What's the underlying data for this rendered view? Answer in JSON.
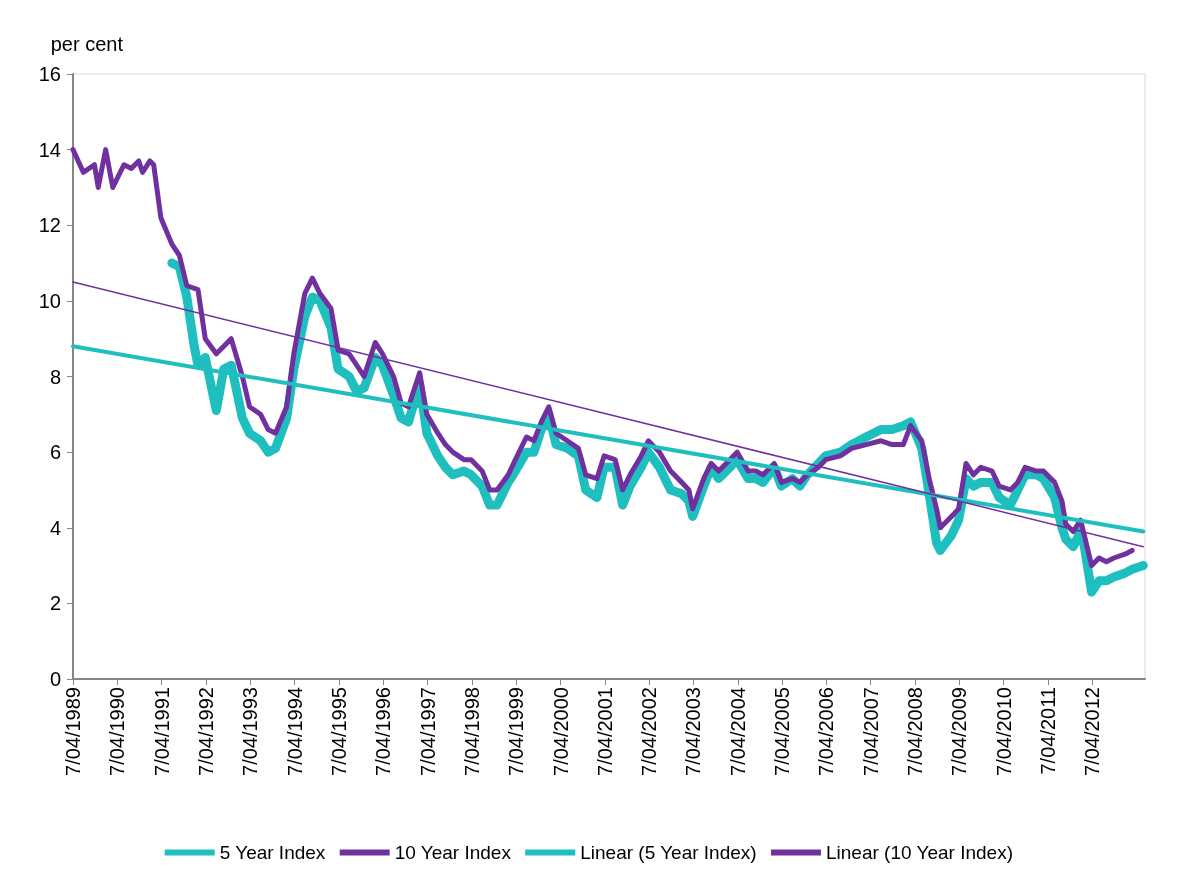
{
  "chart_data": {
    "type": "line",
    "ylabel": "per cent",
    "ylim": [
      0,
      16
    ],
    "yticks": [
      0,
      2,
      4,
      6,
      8,
      10,
      12,
      14,
      16
    ],
    "xlim": [
      "1989-04-07",
      "2013-06-15"
    ],
    "xticks": [
      {
        "value": "1989-04-07",
        "label": "7/04/1989"
      },
      {
        "value": "1990-04-07",
        "label": "7/04/1990"
      },
      {
        "value": "1991-04-07",
        "label": "7/04/1991"
      },
      {
        "value": "1992-04-07",
        "label": "7/04/1992"
      },
      {
        "value": "1993-04-07",
        "label": "7/04/1993"
      },
      {
        "value": "1994-04-07",
        "label": "7/04/1994"
      },
      {
        "value": "1995-04-07",
        "label": "7/04/1995"
      },
      {
        "value": "1996-04-07",
        "label": "7/04/1996"
      },
      {
        "value": "1997-04-07",
        "label": "7/04/1997"
      },
      {
        "value": "1998-04-07",
        "label": "7/04/1998"
      },
      {
        "value": "1999-04-07",
        "label": "7/04/1999"
      },
      {
        "value": "2000-04-07",
        "label": "7/04/2000"
      },
      {
        "value": "2001-04-07",
        "label": "7/04/2001"
      },
      {
        "value": "2002-04-07",
        "label": "7/04/2002"
      },
      {
        "value": "2003-04-07",
        "label": "7/04/2003"
      },
      {
        "value": "2004-04-07",
        "label": "7/04/2004"
      },
      {
        "value": "2005-04-07",
        "label": "7/04/2005"
      },
      {
        "value": "2006-04-07",
        "label": "7/04/2006"
      },
      {
        "value": "2007-04-07",
        "label": "7/04/2007"
      },
      {
        "value": "2008-04-07",
        "label": "7/04/2008"
      },
      {
        "value": "2009-04-07",
        "label": "7/04/2009"
      },
      {
        "value": "2010-04-07",
        "label": "7/04/2010"
      },
      {
        "value": "2011-04-07",
        "label": "7/04/2011"
      },
      {
        "value": "2012-04-07",
        "label": "7/04/2012"
      }
    ],
    "grid": false,
    "legend": "bottom",
    "marker": "none",
    "line_style": "solid",
    "series": [
      {
        "name": "5 Year Index",
        "color": "#1fbfbf",
        "x": [
          "1991-07",
          "1991-09",
          "1991-11",
          "1992-01",
          "1992-02",
          "1992-04",
          "1992-07",
          "1992-09",
          "1992-11",
          "1993-02",
          "1993-04",
          "1993-07",
          "1993-09",
          "1993-11",
          "1994-02",
          "1994-04",
          "1994-07",
          "1994-09",
          "1994-11",
          "1995-02",
          "1995-04",
          "1995-07",
          "1995-09",
          "1995-11",
          "1996-02",
          "1996-04",
          "1996-07",
          "1996-09",
          "1996-11",
          "1997-02",
          "1997-04",
          "1997-07",
          "1997-09",
          "1997-11",
          "1998-02",
          "1998-04",
          "1998-07",
          "1998-09",
          "1998-11",
          "1999-02",
          "1999-04",
          "1999-07",
          "1999-09",
          "1999-11",
          "2000-01",
          "2000-03",
          "2000-06",
          "2000-09",
          "2000-11",
          "2001-02",
          "2001-04",
          "2001-07",
          "2001-09",
          "2001-11",
          "2002-02",
          "2002-04",
          "2002-07",
          "2002-10",
          "2003-01",
          "2003-03",
          "2003-04",
          "2003-07",
          "2003-09",
          "2003-11",
          "2004-02",
          "2004-04",
          "2004-07",
          "2004-09",
          "2004-11",
          "2005-02",
          "2005-04",
          "2005-07",
          "2005-09",
          "2005-11",
          "2006-02",
          "2006-04",
          "2006-08",
          "2006-11",
          "2007-03",
          "2007-07",
          "2007-10",
          "2008-01",
          "2008-03",
          "2008-06",
          "2008-08",
          "2008-10",
          "2008-11",
          "2009-02",
          "2009-04",
          "2009-06",
          "2009-08",
          "2009-10",
          "2010-01",
          "2010-03",
          "2010-06",
          "2010-08",
          "2010-10",
          "2011-01",
          "2011-03",
          "2011-06",
          "2011-08",
          "2011-09",
          "2011-11",
          "2012-01",
          "2012-02",
          "2012-04",
          "2012-06",
          "2012-08",
          "2012-10",
          "2013-01",
          "2013-03",
          "2013-06"
        ],
        "values": [
          11.0,
          10.9,
          10.1,
          8.8,
          8.3,
          8.5,
          7.1,
          8.2,
          8.3,
          6.9,
          6.5,
          6.3,
          6.0,
          6.1,
          6.9,
          8.2,
          9.6,
          10.1,
          10.0,
          9.3,
          8.2,
          8.0,
          7.6,
          7.7,
          8.5,
          8.3,
          7.5,
          6.9,
          6.8,
          7.8,
          6.5,
          5.9,
          5.6,
          5.4,
          5.5,
          5.4,
          5.1,
          4.6,
          4.6,
          5.2,
          5.5,
          6.0,
          6.0,
          6.6,
          7.0,
          6.2,
          6.1,
          5.9,
          5.0,
          4.8,
          5.6,
          5.6,
          4.6,
          5.1,
          5.6,
          6.0,
          5.6,
          5.0,
          4.9,
          4.7,
          4.3,
          5.1,
          5.6,
          5.3,
          5.6,
          5.8,
          5.3,
          5.3,
          5.2,
          5.6,
          5.1,
          5.3,
          5.1,
          5.4,
          5.7,
          5.9,
          6.0,
          6.2,
          6.4,
          6.6,
          6.6,
          6.7,
          6.8,
          6.1,
          4.9,
          3.6,
          3.4,
          3.8,
          4.2,
          5.3,
          5.1,
          5.2,
          5.2,
          4.8,
          4.6,
          5.0,
          5.4,
          5.4,
          5.3,
          4.8,
          4.0,
          3.7,
          3.5,
          3.9,
          3.5,
          2.3,
          2.6,
          2.6,
          2.7,
          2.8,
          2.9,
          3.0
        ]
      },
      {
        "name": "10 Year Index",
        "color": "#7030a0",
        "x": [
          "1989-04-07",
          "1989-07",
          "1989-10",
          "1989-11",
          "1990-01",
          "1990-03",
          "1990-06",
          "1990-08",
          "1990-10",
          "1990-11",
          "1991-01",
          "1991-02",
          "1991-04",
          "1991-07",
          "1991-09",
          "1991-11",
          "1992-02",
          "1992-04",
          "1992-07",
          "1992-09",
          "1992-11",
          "1993-02",
          "1993-04",
          "1993-07",
          "1993-09",
          "1993-11",
          "1994-02",
          "1994-04",
          "1994-07",
          "1994-09",
          "1994-11",
          "1995-02",
          "1995-04",
          "1995-07",
          "1995-09",
          "1995-11",
          "1996-02",
          "1996-04",
          "1996-07",
          "1996-09",
          "1996-11",
          "1997-02",
          "1997-04",
          "1997-07",
          "1997-09",
          "1997-11",
          "1998-02",
          "1998-04",
          "1998-07",
          "1998-09",
          "1998-11",
          "1999-02",
          "1999-04",
          "1999-07",
          "1999-09",
          "1999-11",
          "2000-01",
          "2000-03",
          "2000-06",
          "2000-09",
          "2000-11",
          "2001-02",
          "2001-04",
          "2001-07",
          "2001-09",
          "2001-11",
          "2002-02",
          "2002-04",
          "2002-07",
          "2002-10",
          "2003-01",
          "2003-03",
          "2003-04",
          "2003-07",
          "2003-09",
          "2003-11",
          "2004-02",
          "2004-04",
          "2004-07",
          "2004-09",
          "2004-11",
          "2005-02",
          "2005-04",
          "2005-07",
          "2005-09",
          "2005-11",
          "2006-02",
          "2006-04",
          "2006-08",
          "2006-11",
          "2007-03",
          "2007-07",
          "2007-10",
          "2008-01",
          "2008-03",
          "2008-06",
          "2008-08",
          "2008-10",
          "2008-11",
          "2009-02",
          "2009-04",
          "2009-06",
          "2009-08",
          "2009-10",
          "2010-01",
          "2010-03",
          "2010-06",
          "2010-08",
          "2010-10",
          "2011-01",
          "2011-03",
          "2011-06",
          "2011-08",
          "2011-09",
          "2011-11",
          "2012-01",
          "2012-02",
          "2012-04",
          "2012-06",
          "2012-08",
          "2012-10",
          "2013-01",
          "2013-03"
        ],
        "values": [
          14.0,
          13.4,
          13.6,
          13.0,
          14.0,
          13.0,
          13.6,
          13.5,
          13.7,
          13.4,
          13.7,
          13.6,
          12.2,
          11.5,
          11.2,
          10.4,
          10.3,
          9.0,
          8.6,
          8.8,
          9.0,
          8.0,
          7.2,
          7.0,
          6.6,
          6.5,
          7.2,
          8.6,
          10.2,
          10.6,
          10.2,
          9.8,
          8.7,
          8.6,
          8.3,
          8.0,
          8.9,
          8.6,
          8.0,
          7.3,
          7.2,
          8.1,
          7.0,
          6.5,
          6.2,
          6.0,
          5.8,
          5.8,
          5.5,
          5.0,
          5.0,
          5.4,
          5.8,
          6.4,
          6.3,
          6.8,
          7.2,
          6.5,
          6.3,
          6.1,
          5.4,
          5.3,
          5.9,
          5.8,
          5.0,
          5.4,
          5.9,
          6.3,
          6.0,
          5.5,
          5.2,
          5.0,
          4.5,
          5.3,
          5.7,
          5.5,
          5.8,
          6.0,
          5.5,
          5.5,
          5.4,
          5.7,
          5.2,
          5.3,
          5.2,
          5.4,
          5.6,
          5.8,
          5.9,
          6.1,
          6.2,
          6.3,
          6.2,
          6.2,
          6.7,
          6.3,
          5.3,
          4.5,
          4.0,
          4.3,
          4.5,
          5.7,
          5.4,
          5.6,
          5.5,
          5.1,
          5.0,
          5.2,
          5.6,
          5.5,
          5.5,
          5.2,
          4.7,
          4.1,
          3.9,
          4.2,
          3.8,
          3.0,
          3.2,
          3.1,
          3.2,
          3.3,
          3.4
        ]
      },
      {
        "name": "Linear (5 Year Index)",
        "color": "#1fbfbf",
        "x": [
          "1989-04-07",
          "2013-06"
        ],
        "values": [
          8.8,
          3.9
        ]
      },
      {
        "name": "Linear (10 Year Index)",
        "color": "#7030a0",
        "x": [
          "1989-04-07",
          "2013-06"
        ],
        "values": [
          10.5,
          3.5
        ]
      }
    ]
  }
}
